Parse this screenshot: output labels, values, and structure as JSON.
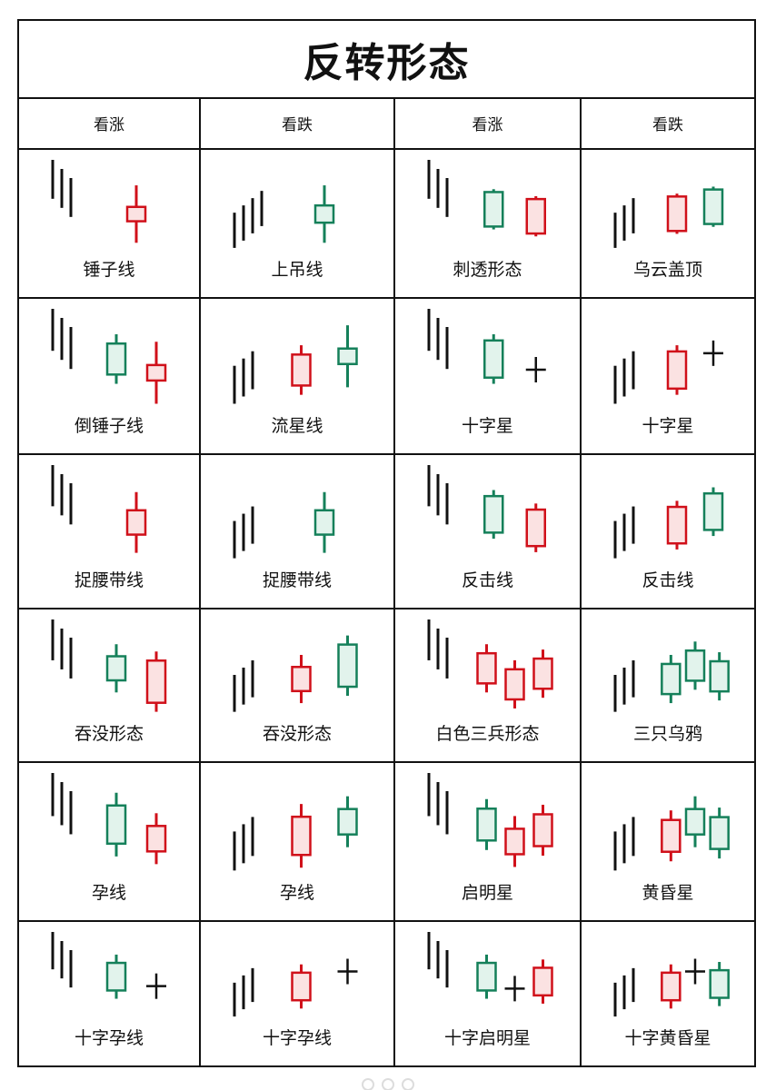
{
  "title": "反转形态",
  "colors": {
    "bull": "#d0101a",
    "bullFill": "#fbe2e2",
    "bear": "#15805a",
    "bearFill": "#e2f3ec",
    "ink": "#111111",
    "grid": "#111111"
  },
  "headers": [
    "看涨",
    "看跌",
    "看涨",
    "看跌"
  ],
  "rows": [
    [
      {
        "label": "锤子线",
        "candles": [
          {
            "t": "trend",
            "d": "down",
            "n": 3
          },
          {
            "t": "c",
            "c": "bull",
            "b": 0.25,
            "lo": 0.0,
            "hi": 1.0
          }
        ]
      },
      {
        "label": "上吊线",
        "candles": [
          {
            "t": "trend",
            "d": "up",
            "n": 4
          },
          {
            "t": "c",
            "c": "bear",
            "b": 0.3,
            "lo": 0.0,
            "hi": 1.0
          }
        ]
      },
      {
        "label": "刺透形态",
        "candles": [
          {
            "t": "trend",
            "d": "down",
            "n": 3
          },
          {
            "t": "c",
            "c": "bear",
            "b": 0.6,
            "lo": 0.1,
            "hi": 0.8
          },
          {
            "t": "c",
            "c": "bull",
            "b": 0.6,
            "lo": 0.2,
            "hi": 0.9
          }
        ]
      },
      {
        "label": "乌云盖顶",
        "candles": [
          {
            "t": "trend",
            "d": "up",
            "n": 3
          },
          {
            "t": "c",
            "c": "bull",
            "b": 0.6,
            "lo": 0.2,
            "hi": 0.9
          },
          {
            "t": "c",
            "c": "bear",
            "b": 0.6,
            "lo": 0.1,
            "hi": 0.8
          }
        ]
      }
    ],
    [
      {
        "label": "倒锤子线",
        "candles": [
          {
            "t": "trend",
            "d": "down",
            "n": 3
          },
          {
            "t": "c",
            "c": "bear",
            "b": 0.5,
            "lo": 0.1,
            "hi": 0.9
          },
          {
            "t": "c",
            "c": "bull",
            "b": 0.25,
            "lo": 0.0,
            "hi": 1.0
          }
        ]
      },
      {
        "label": "流星线",
        "candles": [
          {
            "t": "trend",
            "d": "up",
            "n": 3
          },
          {
            "t": "c",
            "c": "bull",
            "b": 0.5,
            "lo": 0.1,
            "hi": 0.9
          },
          {
            "t": "c",
            "c": "bear",
            "b": 0.25,
            "lo": 0.0,
            "hi": 1.0
          }
        ]
      },
      {
        "label": "十字星",
        "candles": [
          {
            "t": "trend",
            "d": "down",
            "n": 3
          },
          {
            "t": "c",
            "c": "bear",
            "b": 0.6,
            "lo": 0.1,
            "hi": 0.9
          },
          {
            "t": "doji"
          }
        ]
      },
      {
        "label": "十字星",
        "candles": [
          {
            "t": "trend",
            "d": "up",
            "n": 3
          },
          {
            "t": "c",
            "c": "bull",
            "b": 0.6,
            "lo": 0.1,
            "hi": 0.9
          },
          {
            "t": "doji"
          }
        ]
      }
    ],
    [
      {
        "label": "捉腰带线",
        "candles": [
          {
            "t": "trend",
            "d": "down",
            "n": 3
          },
          {
            "t": "c",
            "c": "bull",
            "b": 0.4,
            "lo": 0.0,
            "hi": 1.0
          }
        ]
      },
      {
        "label": "捉腰带线",
        "candles": [
          {
            "t": "trend",
            "d": "up",
            "n": 3
          },
          {
            "t": "c",
            "c": "bear",
            "b": 0.4,
            "lo": 0.0,
            "hi": 1.0
          }
        ]
      },
      {
        "label": "反击线",
        "candles": [
          {
            "t": "trend",
            "d": "down",
            "n": 3
          },
          {
            "t": "c",
            "c": "bear",
            "b": 0.6,
            "lo": 0.1,
            "hi": 0.9
          },
          {
            "t": "c",
            "c": "bull",
            "b": 0.6,
            "lo": 0.1,
            "hi": 0.9
          }
        ]
      },
      {
        "label": "反击线",
        "candles": [
          {
            "t": "trend",
            "d": "up",
            "n": 3
          },
          {
            "t": "c",
            "c": "bull",
            "b": 0.6,
            "lo": 0.1,
            "hi": 0.9
          },
          {
            "t": "c",
            "c": "bear",
            "b": 0.6,
            "lo": 0.1,
            "hi": 0.9
          }
        ]
      }
    ],
    [
      {
        "label": "吞没形态",
        "candles": [
          {
            "t": "trend",
            "d": "down",
            "n": 3
          },
          {
            "t": "c",
            "c": "bear",
            "b": 0.4,
            "lo": 0.1,
            "hi": 0.9
          },
          {
            "t": "c",
            "c": "bull",
            "b": 0.7,
            "lo": 0.0,
            "hi": 1.0
          }
        ]
      },
      {
        "label": "吞没形态",
        "candles": [
          {
            "t": "trend",
            "d": "up",
            "n": 3
          },
          {
            "t": "c",
            "c": "bull",
            "b": 0.4,
            "lo": 0.1,
            "hi": 0.9
          },
          {
            "t": "c",
            "c": "bear",
            "b": 0.7,
            "lo": 0.0,
            "hi": 1.0
          }
        ]
      },
      {
        "label": "白色三兵形态",
        "candles": [
          {
            "t": "trend",
            "d": "down",
            "n": 3
          },
          {
            "t": "c",
            "c": "bull",
            "b": 0.5,
            "lo": 0.1,
            "hi": 0.9
          },
          {
            "t": "c",
            "c": "bull",
            "b": 0.5,
            "lo": 0.1,
            "hi": 0.9
          },
          {
            "t": "c",
            "c": "bull",
            "b": 0.5,
            "lo": 0.1,
            "hi": 0.9
          }
        ]
      },
      {
        "label": "三只乌鸦",
        "candles": [
          {
            "t": "trend",
            "d": "up",
            "n": 3
          },
          {
            "t": "c",
            "c": "bear",
            "b": 0.5,
            "lo": 0.1,
            "hi": 0.9
          },
          {
            "t": "c",
            "c": "bear",
            "b": 0.5,
            "lo": 0.1,
            "hi": 0.9
          },
          {
            "t": "c",
            "c": "bear",
            "b": 0.5,
            "lo": 0.1,
            "hi": 0.9
          }
        ]
      }
    ],
    [
      {
        "label": "孕线",
        "candles": [
          {
            "t": "trend",
            "d": "down",
            "n": 3
          },
          {
            "t": "c",
            "c": "bear",
            "b": 0.6,
            "lo": 0.0,
            "hi": 1.0
          },
          {
            "t": "c",
            "c": "bull",
            "b": 0.4,
            "lo": 0.1,
            "hi": 0.9
          }
        ]
      },
      {
        "label": "孕线",
        "candles": [
          {
            "t": "trend",
            "d": "up",
            "n": 3
          },
          {
            "t": "c",
            "c": "bull",
            "b": 0.6,
            "lo": 0.0,
            "hi": 1.0
          },
          {
            "t": "c",
            "c": "bear",
            "b": 0.4,
            "lo": 0.1,
            "hi": 0.9
          }
        ]
      },
      {
        "label": "启明星",
        "candles": [
          {
            "t": "trend",
            "d": "down",
            "n": 3
          },
          {
            "t": "c",
            "c": "bear",
            "b": 0.5,
            "lo": 0.1,
            "hi": 0.9
          },
          {
            "t": "c",
            "c": "bull",
            "b": 0.4,
            "lo": 0.1,
            "hi": 0.9
          },
          {
            "t": "c",
            "c": "bull",
            "b": 0.5,
            "lo": 0.1,
            "hi": 0.9
          }
        ]
      },
      {
        "label": "黄昏星",
        "candles": [
          {
            "t": "trend",
            "d": "up",
            "n": 3
          },
          {
            "t": "c",
            "c": "bull",
            "b": 0.5,
            "lo": 0.1,
            "hi": 0.9
          },
          {
            "t": "c",
            "c": "bear",
            "b": 0.4,
            "lo": 0.1,
            "hi": 0.9
          },
          {
            "t": "c",
            "c": "bear",
            "b": 0.5,
            "lo": 0.1,
            "hi": 0.9
          }
        ]
      }
    ],
    [
      {
        "label": "十字孕线",
        "candles": [
          {
            "t": "trend",
            "d": "down",
            "n": 3
          },
          {
            "t": "c",
            "c": "bear",
            "b": 0.5,
            "lo": 0.1,
            "hi": 0.9
          },
          {
            "t": "doji"
          }
        ]
      },
      {
        "label": "十字孕线",
        "candles": [
          {
            "t": "trend",
            "d": "up",
            "n": 3
          },
          {
            "t": "c",
            "c": "bull",
            "b": 0.5,
            "lo": 0.1,
            "hi": 0.9
          },
          {
            "t": "doji"
          }
        ]
      },
      {
        "label": "十字启明星",
        "candles": [
          {
            "t": "trend",
            "d": "down",
            "n": 3
          },
          {
            "t": "c",
            "c": "bear",
            "b": 0.5,
            "lo": 0.1,
            "hi": 0.9
          },
          {
            "t": "doji"
          },
          {
            "t": "c",
            "c": "bull",
            "b": 0.5,
            "lo": 0.1,
            "hi": 0.9
          }
        ]
      },
      {
        "label": "十字黄昏星",
        "candles": [
          {
            "t": "trend",
            "d": "up",
            "n": 3
          },
          {
            "t": "c",
            "c": "bull",
            "b": 0.5,
            "lo": 0.1,
            "hi": 0.9
          },
          {
            "t": "doji"
          },
          {
            "t": "c",
            "c": "bear",
            "b": 0.5,
            "lo": 0.1,
            "hi": 0.9
          }
        ]
      }
    ]
  ]
}
